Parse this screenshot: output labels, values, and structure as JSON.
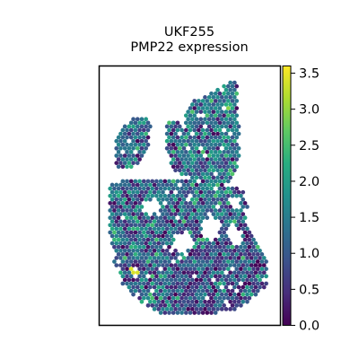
{
  "chart_data": {
    "type": "heatmap",
    "title_line1": "UKF255",
    "title_line2": "PMP22 expression",
    "xlabel": "",
    "ylabel": "",
    "colorbar": {
      "colormap": "viridis",
      "range": [
        0.0,
        3.6
      ],
      "ticks": [
        0.0,
        0.5,
        1.0,
        1.5,
        2.0,
        2.5,
        3.0,
        3.5
      ],
      "tick_labels": [
        "0.0",
        "0.5",
        "1.0",
        "1.5",
        "2.0",
        "2.5",
        "3.0",
        "3.5"
      ]
    },
    "grid": false,
    "description_values": {
      "typical_range": [
        0.8,
        1.8
      ],
      "max_spot_value": 3.5
    }
  }
}
